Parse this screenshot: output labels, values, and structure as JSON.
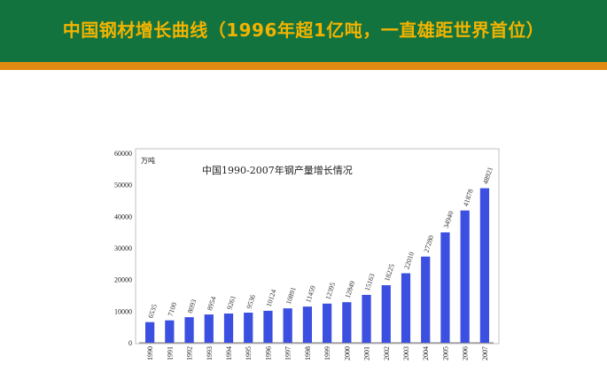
{
  "slide": {
    "title": "中国钢材增长曲线（1996年超1亿吨，一直雄距世界首位）",
    "colors": {
      "header_bg": "#12733f",
      "header_text": "#f2b300",
      "stripe": "#e18a12",
      "bar": "#3b4fe0"
    }
  },
  "chart_data": {
    "type": "bar",
    "title": "中国1990-2007年钢产量增长情况",
    "unit": "万吨",
    "categories": [
      "1990",
      "1991",
      "1992",
      "1993",
      "1994",
      "1995",
      "1996",
      "1997",
      "1998",
      "1999",
      "2000",
      "2001",
      "2002",
      "2003",
      "2004",
      "2005",
      "2006",
      "2007"
    ],
    "values": [
      6535,
      7100,
      8093,
      8954,
      9261,
      9536,
      10124,
      10891,
      11459,
      12395,
      12849,
      15163,
      18225,
      22010,
      27280,
      34940,
      41878,
      48921
    ],
    "data_labels": [
      "6535",
      "7100",
      "8093",
      "8954",
      "9261",
      "9536",
      "10124",
      "10891",
      "11459",
      "12395",
      "12849",
      "15163",
      "18225",
      "22010",
      "27280",
      "34940",
      "41878",
      "48921"
    ],
    "yticks": [
      "0",
      "10000",
      "20000",
      "30000",
      "40000",
      "50000",
      "60000"
    ],
    "ylim": [
      0,
      60000
    ],
    "grid": false,
    "legend": "none"
  }
}
